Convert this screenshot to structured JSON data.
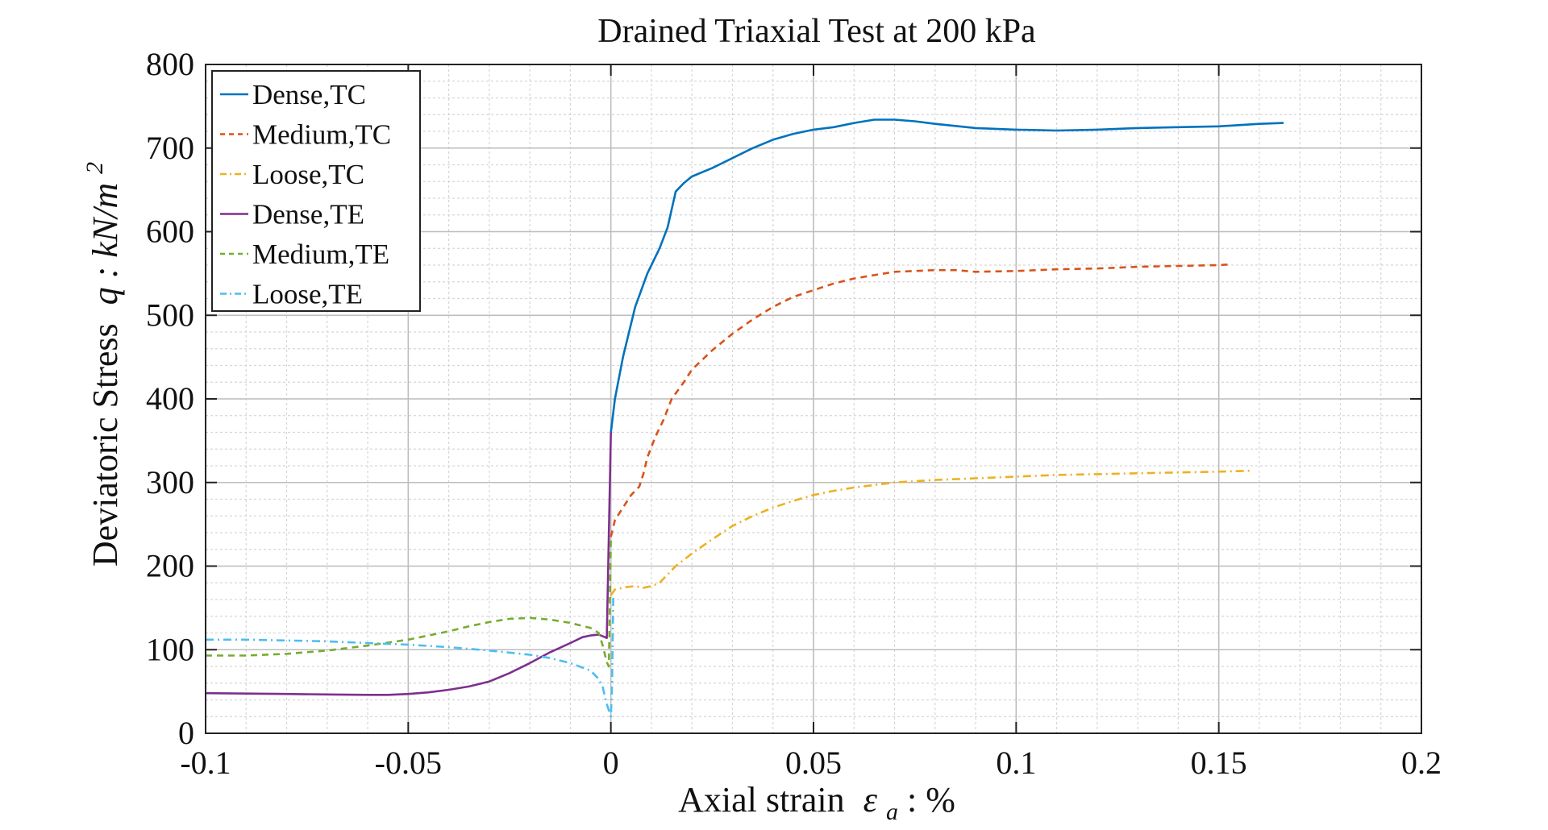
{
  "chart_data": {
    "type": "line",
    "title": "Drained Triaxial Test at 200 kPa",
    "xlabel": {
      "text": "Axial strain",
      "symbol": "ε",
      "subscript": "a",
      "suffix": " : %"
    },
    "ylabel": {
      "text": "Deviatoric Stress",
      "symbol": "q : kN/m",
      "superscript": "2"
    },
    "xlim": [
      -0.1,
      0.2
    ],
    "ylim": [
      0,
      800
    ],
    "x_ticks": [
      -0.1,
      -0.05,
      0,
      0.05,
      0.1,
      0.15,
      0.2
    ],
    "x_tick_labels": [
      "-0.1",
      "-0.05",
      "0",
      "0.05",
      "0.1",
      "0.15",
      "0.2"
    ],
    "y_ticks": [
      0,
      100,
      200,
      300,
      400,
      500,
      600,
      700,
      800
    ],
    "y_tick_labels": [
      "0",
      "100",
      "200",
      "300",
      "400",
      "500",
      "600",
      "700",
      "800"
    ],
    "grid": true,
    "minor_grid": true,
    "legend_position": "top-left",
    "series": [
      {
        "name": "Dense,TC",
        "color": "#0072BD",
        "style": "solid",
        "points": [
          [
            0,
            360
          ],
          [
            0.001,
            400
          ],
          [
            0.003,
            450
          ],
          [
            0.006,
            510
          ],
          [
            0.009,
            550
          ],
          [
            0.012,
            580
          ],
          [
            0.014,
            605
          ],
          [
            0.016,
            648
          ],
          [
            0.018,
            658
          ],
          [
            0.02,
            666
          ],
          [
            0.025,
            676
          ],
          [
            0.03,
            688
          ],
          [
            0.035,
            700
          ],
          [
            0.04,
            710
          ],
          [
            0.045,
            717
          ],
          [
            0.05,
            722
          ],
          [
            0.055,
            725
          ],
          [
            0.06,
            730
          ],
          [
            0.065,
            734
          ],
          [
            0.07,
            734
          ],
          [
            0.075,
            732
          ],
          [
            0.08,
            729
          ],
          [
            0.09,
            724
          ],
          [
            0.1,
            722
          ],
          [
            0.11,
            721
          ],
          [
            0.12,
            722
          ],
          [
            0.13,
            724
          ],
          [
            0.14,
            725
          ],
          [
            0.15,
            726
          ],
          [
            0.16,
            729
          ],
          [
            0.166,
            730
          ]
        ]
      },
      {
        "name": "Medium,TC",
        "color": "#D95319",
        "style": "dashed",
        "points": [
          [
            0,
            235
          ],
          [
            0.001,
            255
          ],
          [
            0.003,
            270
          ],
          [
            0.005,
            285
          ],
          [
            0.007,
            295
          ],
          [
            0.008,
            310
          ],
          [
            0.009,
            330
          ],
          [
            0.011,
            355
          ],
          [
            0.013,
            375
          ],
          [
            0.015,
            400
          ],
          [
            0.018,
            420
          ],
          [
            0.02,
            435
          ],
          [
            0.025,
            458
          ],
          [
            0.03,
            478
          ],
          [
            0.035,
            495
          ],
          [
            0.04,
            510
          ],
          [
            0.045,
            522
          ],
          [
            0.05,
            530
          ],
          [
            0.055,
            538
          ],
          [
            0.06,
            544
          ],
          [
            0.065,
            548
          ],
          [
            0.07,
            552
          ],
          [
            0.075,
            553
          ],
          [
            0.08,
            554
          ],
          [
            0.085,
            554
          ],
          [
            0.09,
            552
          ],
          [
            0.1,
            553
          ],
          [
            0.11,
            555
          ],
          [
            0.12,
            556
          ],
          [
            0.13,
            558
          ],
          [
            0.14,
            559
          ],
          [
            0.15,
            560
          ],
          [
            0.153,
            561
          ]
        ]
      },
      {
        "name": "Loose,TC",
        "color": "#EDB120",
        "style": "dashdot",
        "points": [
          [
            0,
            165
          ],
          [
            0.001,
            172
          ],
          [
            0.004,
            175
          ],
          [
            0.006,
            176
          ],
          [
            0.008,
            174
          ],
          [
            0.01,
            176
          ],
          [
            0.012,
            180
          ],
          [
            0.014,
            190
          ],
          [
            0.016,
            200
          ],
          [
            0.02,
            215
          ],
          [
            0.025,
            232
          ],
          [
            0.03,
            248
          ],
          [
            0.035,
            260
          ],
          [
            0.04,
            270
          ],
          [
            0.045,
            278
          ],
          [
            0.05,
            285
          ],
          [
            0.055,
            290
          ],
          [
            0.06,
            294
          ],
          [
            0.065,
            297
          ],
          [
            0.07,
            300
          ],
          [
            0.08,
            303
          ],
          [
            0.09,
            305
          ],
          [
            0.1,
            307
          ],
          [
            0.11,
            309
          ],
          [
            0.12,
            310
          ],
          [
            0.13,
            311
          ],
          [
            0.14,
            312
          ],
          [
            0.15,
            313
          ],
          [
            0.158,
            314
          ]
        ]
      },
      {
        "name": "Dense,TE",
        "color": "#7E2F8E",
        "style": "solid",
        "points": [
          [
            -0.1,
            48
          ],
          [
            -0.09,
            47.5
          ],
          [
            -0.08,
            47
          ],
          [
            -0.07,
            46.5
          ],
          [
            -0.06,
            46
          ],
          [
            -0.055,
            46
          ],
          [
            -0.05,
            47
          ],
          [
            -0.045,
            49
          ],
          [
            -0.04,
            52
          ],
          [
            -0.035,
            56
          ],
          [
            -0.03,
            62
          ],
          [
            -0.025,
            72
          ],
          [
            -0.02,
            84
          ],
          [
            -0.015,
            97
          ],
          [
            -0.01,
            108
          ],
          [
            -0.007,
            115
          ],
          [
            -0.005,
            117
          ],
          [
            -0.003,
            118
          ],
          [
            -0.002,
            116
          ],
          [
            -0.001,
            114
          ],
          [
            0,
            360
          ]
        ]
      },
      {
        "name": "Medium,TE",
        "color": "#77AC30",
        "style": "dashed",
        "points": [
          [
            -0.1,
            93
          ],
          [
            -0.09,
            93
          ],
          [
            -0.08,
            95
          ],
          [
            -0.07,
            99
          ],
          [
            -0.06,
            105
          ],
          [
            -0.05,
            112
          ],
          [
            -0.04,
            122
          ],
          [
            -0.035,
            128
          ],
          [
            -0.03,
            133
          ],
          [
            -0.025,
            137
          ],
          [
            -0.02,
            138
          ],
          [
            -0.015,
            136
          ],
          [
            -0.01,
            132
          ],
          [
            -0.005,
            126
          ],
          [
            -0.003,
            120
          ],
          [
            -0.002,
            105
          ],
          [
            -0.001,
            85
          ],
          [
            -0.0005,
            80
          ],
          [
            0,
            235
          ]
        ]
      },
      {
        "name": "Loose,TE",
        "color": "#4DBEEE",
        "style": "dashdot",
        "points": [
          [
            -0.1,
            112
          ],
          [
            -0.09,
            112
          ],
          [
            -0.08,
            111
          ],
          [
            -0.07,
            110
          ],
          [
            -0.06,
            108
          ],
          [
            -0.05,
            106
          ],
          [
            -0.04,
            103
          ],
          [
            -0.03,
            99
          ],
          [
            -0.02,
            94
          ],
          [
            -0.015,
            90
          ],
          [
            -0.01,
            84
          ],
          [
            -0.005,
            75
          ],
          [
            -0.003,
            65
          ],
          [
            -0.002,
            55
          ],
          [
            -0.001,
            35
          ],
          [
            0,
            20
          ],
          [
            0.0003,
            60
          ],
          [
            0.0006,
            165
          ]
        ]
      }
    ]
  }
}
